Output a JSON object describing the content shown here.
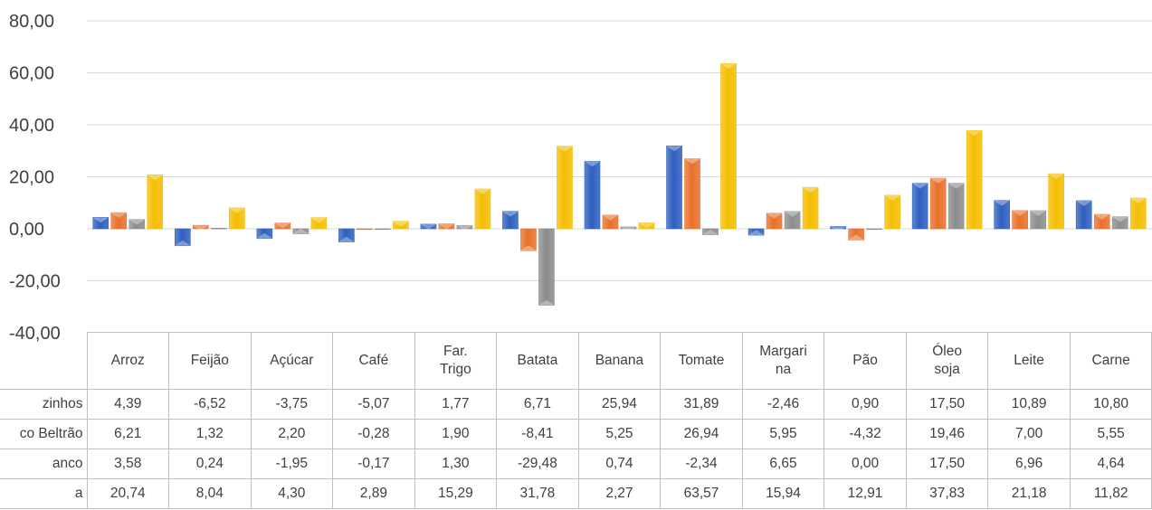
{
  "chart_data": {
    "type": "bar",
    "categories": [
      "Arroz",
      "Feijão",
      "Açúcar",
      "Café",
      "Far. Trigo",
      "Batata",
      "Banana",
      "Tomate",
      "Margarina",
      "Pão",
      "Óleo soja",
      "Leite",
      "Carne"
    ],
    "category_display": [
      "Arroz",
      "Feijão",
      "Açúcar",
      "Café",
      "Far.\nTrigo",
      "Batata",
      "Banana",
      "Tomate",
      "Margari\nna",
      "Pão",
      "Óleo\nsoja",
      "Leite",
      "Carne"
    ],
    "series": [
      {
        "name": "zinhos",
        "color": "#2e5fbf",
        "values": [
          4.39,
          -6.52,
          -3.75,
          -5.07,
          1.77,
          6.71,
          25.94,
          31.89,
          -2.46,
          0.9,
          17.5,
          10.89,
          10.8
        ],
        "labels": [
          "4,39",
          "-6,52",
          "-3,75",
          "-5,07",
          "1,77",
          "6,71",
          "25,94",
          "31,89",
          "-2,46",
          "0,90",
          "17,50",
          "10,89",
          "10,80"
        ]
      },
      {
        "name": "co Beltrão",
        "color": "#e8702a",
        "values": [
          6.21,
          1.32,
          2.2,
          -0.28,
          1.9,
          -8.41,
          5.25,
          26.94,
          5.95,
          -4.32,
          19.46,
          7.0,
          5.55
        ],
        "labels": [
          "6,21",
          "1,32",
          "2,20",
          "-0,28",
          "1,90",
          "-8,41",
          "5,25",
          "26,94",
          "5,95",
          "-4,32",
          "19,46",
          "7,00",
          "5,55"
        ]
      },
      {
        "name": "anco",
        "color": "#8c8c8c",
        "values": [
          3.58,
          0.24,
          -1.95,
          -0.17,
          1.3,
          -29.48,
          0.74,
          -2.34,
          6.65,
          0.0,
          17.5,
          6.96,
          4.64
        ],
        "labels": [
          "3,58",
          "0,24",
          "-1,95",
          "-0,17",
          "1,30",
          "-29,48",
          "0,74",
          "-2,34",
          "6,65",
          "0,00",
          "17,50",
          "6,96",
          "4,64"
        ]
      },
      {
        "name": "a",
        "color": "#f5bd00",
        "values": [
          20.74,
          8.04,
          4.3,
          2.89,
          15.29,
          31.78,
          2.27,
          63.57,
          15.94,
          12.91,
          37.83,
          21.18,
          11.82
        ],
        "labels": [
          "20,74",
          "8,04",
          "4,30",
          "2,89",
          "15,29",
          "31,78",
          "2,27",
          "63,57",
          "15,94",
          "12,91",
          "37,83",
          "21,18",
          "11,82"
        ]
      }
    ],
    "ylim": [
      -40,
      80
    ],
    "yticks": [
      -40,
      -20,
      0,
      20,
      40,
      60,
      80
    ],
    "ytick_labels": [
      "-40,00",
      "-20,00",
      "0,00",
      "20,00",
      "40,00",
      "60,00",
      "80,00"
    ],
    "grid": true,
    "legend": "data-table"
  }
}
